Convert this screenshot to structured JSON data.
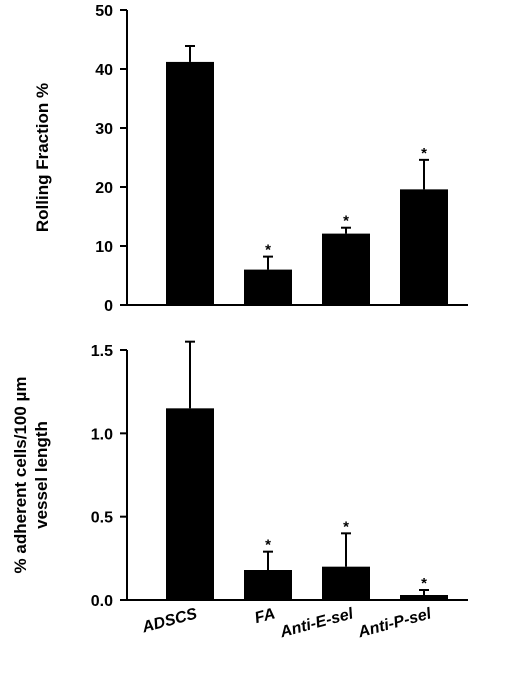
{
  "chart_data": [
    {
      "type": "bar",
      "categories": [
        "ADSCS",
        "FA",
        "Anti-E-sel",
        "Anti-P-sel"
      ],
      "values": [
        41.2,
        6.0,
        12.1,
        19.6
      ],
      "errors": [
        2.7,
        2.2,
        1.0,
        5.0
      ],
      "significance": [
        "",
        "*",
        "*",
        "*"
      ],
      "title": "",
      "xlabel": "",
      "ylabel": "Rolling Fraction %",
      "ylim": [
        0,
        50
      ],
      "yticks": [
        "0",
        "10",
        "20",
        "30",
        "40",
        "50"
      ],
      "bar_color": "#000000",
      "grid": false
    },
    {
      "type": "bar",
      "categories": [
        "ADSCS",
        "FA",
        "Anti-E-sel",
        "Anti-P-sel"
      ],
      "values": [
        1.15,
        0.18,
        0.2,
        0.03
      ],
      "errors": [
        0.4,
        0.11,
        0.2,
        0.03
      ],
      "significance": [
        "",
        "*",
        "*",
        "*"
      ],
      "title": "",
      "xlabel": "",
      "ylabel": [
        "% adherent cells/100 µm",
        "vessel length"
      ],
      "ylim": [
        0,
        1.5
      ],
      "yticks": [
        "0.0",
        "0.5",
        "1.0",
        "1.5"
      ],
      "bar_color": "#000000",
      "grid": false
    }
  ]
}
